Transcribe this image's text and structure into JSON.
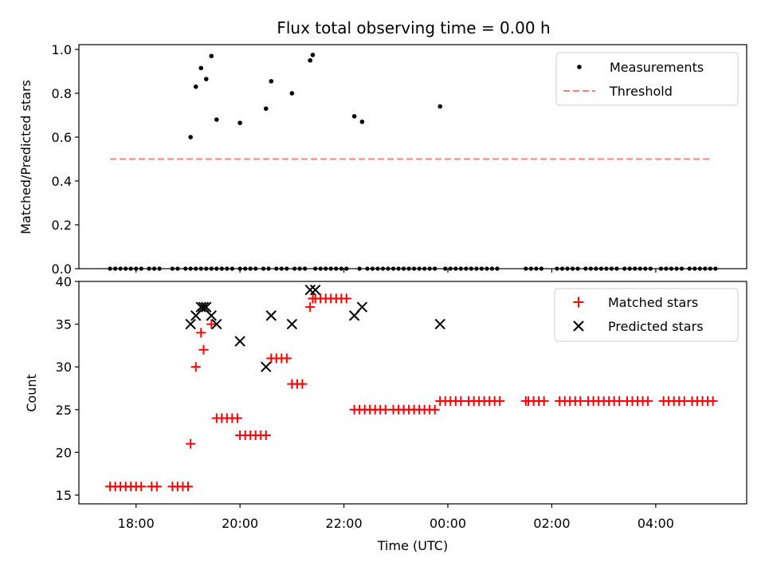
{
  "chart_data": [
    {
      "type": "scatter",
      "title": "Flux total observing time = 0.00 h",
      "xlabel": "",
      "ylabel": "Matched/Predicted stars",
      "ylim": [
        0,
        1.0
      ],
      "yticks": [
        "0.0",
        "0.2",
        "0.4",
        "0.6",
        "0.8",
        "1.0"
      ],
      "xlim_hours": [
        16.9,
        29.75
      ],
      "legend_position": "top-right",
      "series": [
        {
          "name": "Measurements",
          "kind": "dots",
          "color": "#000000",
          "x_hours": [
            19.05,
            19.15,
            19.25,
            19.35,
            19.45,
            19.55,
            20.0,
            20.5,
            20.6,
            21.0,
            21.35,
            21.4,
            22.2,
            22.35,
            23.85
          ],
          "y": [
            0.6,
            0.83,
            0.915,
            0.865,
            0.97,
            0.68,
            0.665,
            0.73,
            0.855,
            0.8,
            0.95,
            0.975,
            0.695,
            0.67,
            0.74
          ]
        },
        {
          "name": "Measurements zero values",
          "kind": "dots",
          "color": "#000000",
          "y_value": 0,
          "x_hours": [
            17.5,
            17.6,
            17.7,
            17.8,
            17.9,
            18.0,
            18.1,
            18.25,
            18.35,
            18.45,
            18.7,
            18.8,
            18.95,
            19.05,
            19.15,
            19.25,
            19.35,
            19.45,
            19.55,
            19.65,
            19.75,
            19.85,
            20.0,
            20.1,
            20.2,
            20.3,
            20.45,
            20.55,
            20.7,
            20.8,
            20.9,
            21.05,
            21.15,
            21.25,
            21.45,
            21.55,
            21.65,
            21.75,
            21.85,
            21.95,
            22.05,
            22.3,
            22.45,
            22.55,
            22.65,
            22.75,
            22.85,
            22.95,
            23.05,
            23.15,
            23.25,
            23.35,
            23.45,
            23.55,
            23.65,
            23.75,
            23.95,
            24.05,
            24.15,
            24.25,
            24.35,
            24.45,
            24.55,
            24.65,
            24.75,
            24.85,
            24.95,
            25.5,
            25.6,
            25.7,
            25.8,
            26.1,
            26.2,
            26.3,
            26.4,
            26.5,
            26.65,
            26.75,
            26.85,
            26.95,
            27.05,
            27.15,
            27.25,
            27.4,
            27.5,
            27.6,
            27.7,
            27.8,
            27.9,
            28.1,
            28.2,
            28.3,
            28.4,
            28.5,
            28.65,
            28.75,
            28.85,
            28.95,
            29.05,
            29.15
          ]
        },
        {
          "name": "Threshold",
          "kind": "dashed-line",
          "color": "#ff7f7f",
          "x_hours": [
            17.5,
            29.05
          ],
          "y": [
            0.5,
            0.5
          ]
        }
      ]
    },
    {
      "type": "scatter",
      "title": "",
      "xlabel": "Time (UTC)",
      "ylabel": "Count",
      "ylim": [
        15,
        40
      ],
      "yticks": [
        "15",
        "20",
        "25",
        "30",
        "35",
        "40"
      ],
      "xlim_hours": [
        16.9,
        29.75
      ],
      "xticks_hours": [
        18,
        20,
        22,
        24,
        26,
        28
      ],
      "xtick_labels": [
        "18:00",
        "20:00",
        "22:00",
        "00:00",
        "02:00",
        "04:00"
      ],
      "legend_position": "top-right",
      "series": [
        {
          "name": "Matched stars",
          "kind": "plus",
          "color": "#ff0000",
          "segments": [
            {
              "y": 16,
              "x_hours": [
                17.5,
                17.6,
                17.7,
                17.8,
                17.9,
                18.0,
                18.1,
                18.3,
                18.4,
                18.7,
                18.8,
                18.9,
                19.0
              ]
            },
            {
              "y": 24,
              "x_hours": [
                19.55,
                19.65,
                19.75,
                19.85,
                19.95
              ]
            },
            {
              "y": 22,
              "x_hours": [
                20.0,
                20.1,
                20.2,
                20.3,
                20.4,
                20.5
              ]
            },
            {
              "y": 31,
              "x_hours": [
                20.6,
                20.7,
                20.8,
                20.9
              ]
            },
            {
              "y": 28,
              "x_hours": [
                21.0,
                21.1,
                21.2
              ]
            },
            {
              "y": 38,
              "x_hours": [
                21.45,
                21.55,
                21.65,
                21.75,
                21.85,
                21.95,
                22.05
              ]
            },
            {
              "y": 25,
              "x_hours": [
                22.2,
                22.3,
                22.4,
                22.5,
                22.6,
                22.7,
                22.8,
                22.95,
                23.05,
                23.15,
                23.25,
                23.35,
                23.45,
                23.55,
                23.65,
                23.75
              ]
            },
            {
              "y": 26,
              "x_hours": [
                23.85,
                23.95,
                24.05,
                24.15,
                24.25,
                24.4,
                24.5,
                24.6,
                24.7,
                24.8,
                24.9,
                25.0
              ]
            },
            {
              "y": 26,
              "x_hours": [
                25.5,
                25.55,
                25.65,
                25.75,
                25.85,
                26.15,
                26.25,
                26.35,
                26.45,
                26.55,
                26.7,
                26.8,
                26.9,
                27.0,
                27.1,
                27.2,
                27.3,
                27.45,
                27.55,
                27.65,
                27.75,
                27.85,
                28.15,
                28.25,
                28.35,
                28.45,
                28.55,
                28.7,
                28.8,
                28.9,
                29.0,
                29.1
              ]
            }
          ],
          "extra_x_hours": [
            19.05,
            19.15,
            19.25,
            19.3,
            19.45,
            21.35,
            21.4
          ],
          "extra_y": [
            21,
            30,
            34,
            32,
            35,
            37,
            38
          ]
        },
        {
          "name": "Predicted stars",
          "kind": "cross",
          "color": "#000000",
          "x_hours": [
            19.05,
            19.15,
            19.25,
            19.3,
            19.35,
            19.45,
            19.55,
            20.0,
            20.5,
            20.6,
            21.0,
            21.35,
            21.45,
            22.2,
            22.35,
            23.85
          ],
          "y": [
            35,
            36,
            37,
            37,
            37,
            36,
            35,
            33,
            30,
            36,
            35,
            39,
            39,
            36,
            37,
            35
          ]
        }
      ]
    }
  ],
  "legends": {
    "top": [
      {
        "label": "Measurements",
        "symbol": "dot",
        "color": "#000000"
      },
      {
        "label": "Threshold",
        "symbol": "dash",
        "color": "#ff7f7f"
      }
    ],
    "bottom": [
      {
        "label": "Matched stars",
        "symbol": "plus",
        "color": "#ff0000"
      },
      {
        "label": "Predicted stars",
        "symbol": "cross",
        "color": "#000000"
      }
    ]
  }
}
